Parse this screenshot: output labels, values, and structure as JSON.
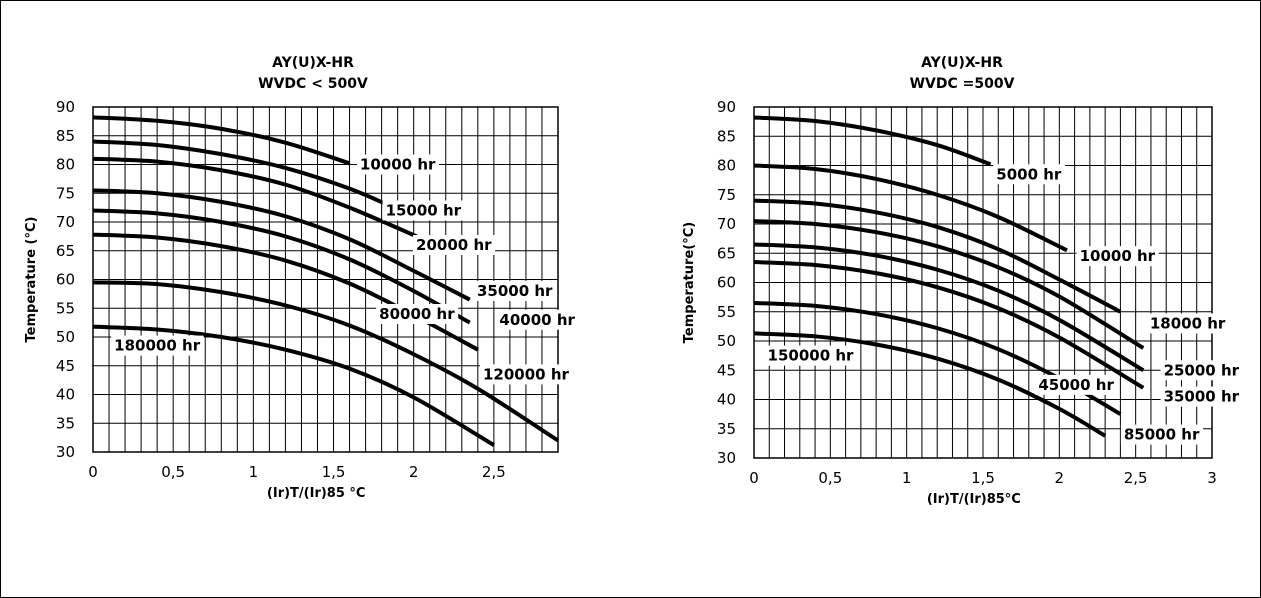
{
  "chart_data": [
    {
      "type": "line",
      "title": "AY(U)X-HR",
      "subtitle": "WVDC < 500V",
      "xlabel": "(Ir)T/(Ir)85 °C",
      "ylabel": "Temperature (°C)",
      "xlim": [
        0,
        2.9
      ],
      "ylim": [
        30,
        90
      ],
      "x_ticks": [
        "0",
        "0,5",
        "1",
        "1,5",
        "2",
        "2,5"
      ],
      "x_tick_values": [
        0,
        0.5,
        1,
        1.5,
        2,
        2.5
      ],
      "y_ticks": [
        30,
        35,
        40,
        45,
        50,
        55,
        60,
        65,
        70,
        75,
        80,
        85,
        90
      ],
      "grid": true,
      "series": [
        {
          "name": "10000 hr",
          "x": [
            0,
            0.4,
            0.8,
            1.2,
            1.6
          ],
          "y": [
            88.2,
            87.6,
            86.2,
            83.8,
            80.2
          ]
        },
        {
          "name": "15000 hr",
          "x": [
            0,
            0.4,
            0.8,
            1.2,
            1.6,
            1.9
          ],
          "y": [
            84.0,
            83.4,
            81.8,
            79.4,
            75.8,
            72.2
          ]
        },
        {
          "name": "20000 hr",
          "x": [
            0,
            0.4,
            0.8,
            1.2,
            1.6,
            2.1
          ],
          "y": [
            81.0,
            80.5,
            79.0,
            76.5,
            72.5,
            66.5
          ]
        },
        {
          "name": "35000 hr",
          "x": [
            0,
            0.4,
            0.8,
            1.2,
            1.6,
            2.0,
            2.35
          ],
          "y": [
            75.5,
            75.0,
            73.5,
            71.0,
            67.0,
            61.5,
            56.5
          ]
        },
        {
          "name": "40000 hr",
          "x": [
            0,
            0.4,
            0.8,
            1.2,
            1.6,
            2.0,
            2.35
          ],
          "y": [
            72.0,
            71.5,
            70.0,
            67.5,
            63.5,
            58.0,
            52.5
          ]
        },
        {
          "name": "80000 hr",
          "x": [
            0,
            0.4,
            0.8,
            1.2,
            1.6,
            2.0,
            2.4
          ],
          "y": [
            67.8,
            67.3,
            65.8,
            63.3,
            59.3,
            53.8,
            47.8
          ]
        },
        {
          "name": "120000 hr",
          "x": [
            0,
            0.4,
            0.8,
            1.2,
            1.6,
            2.0,
            2.4,
            2.9
          ],
          "y": [
            59.5,
            59.2,
            57.8,
            55.5,
            52.0,
            47.0,
            41.0,
            32.0
          ]
        },
        {
          "name": "180000 hr",
          "x": [
            0,
            0.4,
            0.8,
            1.2,
            1.6,
            2.0,
            2.5
          ],
          "y": [
            51.8,
            51.3,
            50.0,
            47.8,
            44.5,
            39.5,
            31.2
          ]
        }
      ],
      "label_values": [
        {
          "text": "10000 hr",
          "x": 1.9,
          "y": 80
        },
        {
          "text": "15000 hr",
          "x": 2.06,
          "y": 72
        },
        {
          "text": "20000 hr",
          "x": 2.25,
          "y": 66
        },
        {
          "text": "35000 hr",
          "x": 2.63,
          "y": 58
        },
        {
          "text": "80000 hr",
          "x": 2.02,
          "y": 54
        },
        {
          "text": "40000 hr",
          "x": 2.77,
          "y": 53
        },
        {
          "text": "120000 hr",
          "x": 2.7,
          "y": 43.5
        },
        {
          "text": "180000 hr",
          "x": 0.4,
          "y": 48.5
        }
      ]
    },
    {
      "type": "line",
      "title": "AY(U)X-HR",
      "subtitle": "WVDC =500V",
      "xlabel": "(Ir)T/(Ir)85°C",
      "ylabel": "Temperature(°C)",
      "xlim": [
        0,
        3
      ],
      "ylim": [
        30,
        90
      ],
      "x_ticks": [
        "0",
        "0,5",
        "1",
        "1,5",
        "2",
        "2,5",
        "3"
      ],
      "x_tick_values": [
        0,
        0.5,
        1,
        1.5,
        2,
        2.5,
        3
      ],
      "y_ticks": [
        30,
        35,
        40,
        45,
        50,
        55,
        60,
        65,
        70,
        75,
        80,
        85,
        90
      ],
      "grid": true,
      "series": [
        {
          "name": "5000 hr",
          "x": [
            0,
            0.4,
            0.8,
            1.2,
            1.55
          ],
          "y": [
            88.2,
            87.6,
            86.0,
            83.5,
            80.2
          ]
        },
        {
          "name": "10000 hr",
          "x": [
            0,
            0.4,
            0.8,
            1.2,
            1.6,
            2.05
          ],
          "y": [
            80.0,
            79.4,
            77.7,
            75.0,
            71.2,
            65.5
          ]
        },
        {
          "name": "18000 hr",
          "x": [
            0,
            0.4,
            0.8,
            1.2,
            1.6,
            2.0,
            2.4
          ],
          "y": [
            74.0,
            73.5,
            72.0,
            69.5,
            65.7,
            60.5,
            55.0
          ]
        },
        {
          "name": "25000 hr",
          "x": [
            0,
            0.4,
            0.8,
            1.2,
            1.6,
            2.0,
            2.55
          ],
          "y": [
            70.5,
            70.0,
            68.6,
            66.2,
            62.6,
            57.6,
            48.8
          ]
        },
        {
          "name": "35000 hr",
          "x": [
            0,
            0.4,
            0.8,
            1.2,
            1.6,
            2.0,
            2.55
          ],
          "y": [
            66.5,
            66.0,
            64.6,
            62.2,
            58.6,
            53.6,
            45.0
          ]
        },
        {
          "name": "45000 hr",
          "x": [
            0,
            0.4,
            0.8,
            1.2,
            1.6,
            2.0,
            2.55
          ],
          "y": [
            63.5,
            63.0,
            61.6,
            59.2,
            55.6,
            50.6,
            42.0
          ]
        },
        {
          "name": "85000 hr",
          "x": [
            0,
            0.4,
            0.8,
            1.2,
            1.6,
            2.0,
            2.4
          ],
          "y": [
            56.5,
            56.0,
            54.6,
            52.2,
            48.6,
            43.6,
            37.5
          ]
        },
        {
          "name": "150000 hr",
          "x": [
            0,
            0.4,
            0.8,
            1.2,
            1.6,
            2.0,
            2.3
          ],
          "y": [
            51.3,
            50.8,
            49.4,
            47.0,
            43.4,
            38.4,
            33.8
          ]
        }
      ],
      "label_values": [
        {
          "text": "5000 hr",
          "x": 1.8,
          "y": 78.5
        },
        {
          "text": "10000 hr",
          "x": 2.38,
          "y": 64.5
        },
        {
          "text": "18000 hr",
          "x": 2.84,
          "y": 53
        },
        {
          "text": "25000 hr",
          "x": 2.93,
          "y": 45
        },
        {
          "text": "35000 hr",
          "x": 2.93,
          "y": 40.5
        },
        {
          "text": "45000 hr",
          "x": 2.11,
          "y": 42.5
        },
        {
          "text": "85000 hr",
          "x": 2.67,
          "y": 34
        },
        {
          "text": "150000 hr",
          "x": 0.37,
          "y": 47.5
        }
      ]
    }
  ]
}
